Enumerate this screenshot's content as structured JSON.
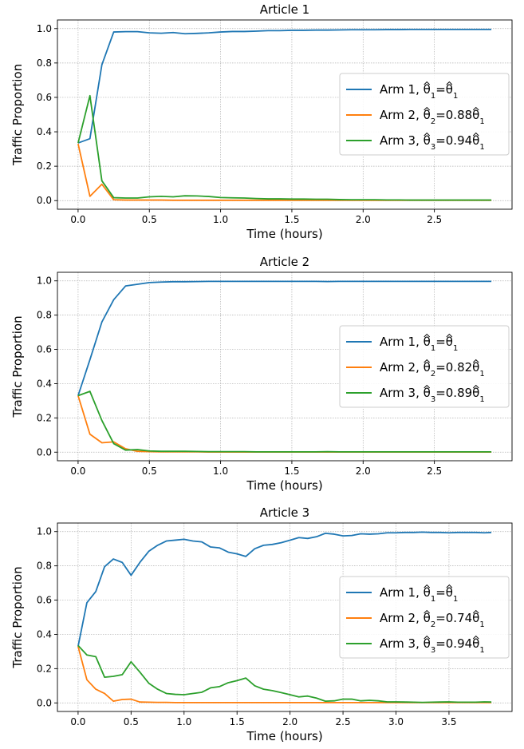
{
  "colors": {
    "arm1": "#1f77b4",
    "arm2": "#ff7f0e",
    "arm3": "#2ca02c",
    "grid": "#b0b0b0",
    "axes": "#000000"
  },
  "chart_data": [
    {
      "type": "line",
      "title": "Article 1",
      "xlabel": "Time (hours)",
      "ylabel": "Traffic Proportion",
      "xlim": [
        -0.145,
        3.045
      ],
      "ylim": [
        -0.05,
        1.05
      ],
      "xticks": [
        0.0,
        0.5,
        1.0,
        1.5,
        2.0,
        2.5
      ],
      "xtick_labels": [
        "0.0",
        "0.5",
        "1.0",
        "1.5",
        "2.0",
        "2.5"
      ],
      "yticks": [
        0.0,
        0.2,
        0.4,
        0.6,
        0.8,
        1.0
      ],
      "ytick_labels": [
        "0.0",
        "0.2",
        "0.4",
        "0.6",
        "0.8",
        "1.0"
      ],
      "grid": true,
      "legend_position": "center-right",
      "x": [
        0.0,
        0.083,
        0.167,
        0.25,
        0.333,
        0.417,
        0.5,
        0.583,
        0.667,
        0.75,
        0.833,
        0.917,
        1.0,
        1.083,
        1.167,
        1.25,
        1.333,
        1.417,
        1.5,
        1.583,
        1.667,
        1.75,
        1.833,
        1.917,
        2.0,
        2.083,
        2.167,
        2.25,
        2.333,
        2.417,
        2.5,
        2.583,
        2.667,
        2.75,
        2.833,
        2.9
      ],
      "series": [
        {
          "name": "Arm 1",
          "label_suffix": "=",
          "label_coef": "",
          "color_key": "arm1",
          "values": [
            0.335,
            0.36,
            0.79,
            0.98,
            0.982,
            0.982,
            0.975,
            0.973,
            0.977,
            0.97,
            0.972,
            0.975,
            0.98,
            0.983,
            0.983,
            0.985,
            0.988,
            0.988,
            0.99,
            0.99,
            0.991,
            0.991,
            0.992,
            0.993,
            0.993,
            0.993,
            0.994,
            0.994,
            0.995,
            0.995,
            0.995,
            0.995,
            0.995,
            0.995,
            0.995,
            0.995
          ]
        },
        {
          "name": "Arm 2",
          "label_suffix": "=",
          "label_coef": "0.88",
          "color_key": "arm2",
          "values": [
            0.33,
            0.025,
            0.095,
            0.005,
            0.003,
            0.003,
            0.003,
            0.003,
            0.002,
            0.002,
            0.002,
            0.002,
            0.002,
            0.002,
            0.002,
            0.002,
            0.002,
            0.002,
            0.002,
            0.002,
            0.002,
            0.002,
            0.002,
            0.002,
            0.002,
            0.002,
            0.002,
            0.002,
            0.002,
            0.002,
            0.002,
            0.002,
            0.002,
            0.002,
            0.002,
            0.002
          ]
        },
        {
          "name": "Arm 3",
          "label_suffix": "=",
          "label_coef": "0.94",
          "color_key": "arm3",
          "values": [
            0.335,
            0.61,
            0.115,
            0.017,
            0.015,
            0.015,
            0.022,
            0.025,
            0.022,
            0.028,
            0.027,
            0.024,
            0.018,
            0.016,
            0.015,
            0.012,
            0.01,
            0.01,
            0.009,
            0.009,
            0.008,
            0.008,
            0.006,
            0.005,
            0.005,
            0.005,
            0.004,
            0.004,
            0.003,
            0.003,
            0.003,
            0.003,
            0.003,
            0.003,
            0.003,
            0.003
          ]
        }
      ]
    },
    {
      "type": "line",
      "title": "Article 2",
      "xlabel": "Time (hours)",
      "ylabel": "Traffic Proportion",
      "xlim": [
        -0.145,
        3.045
      ],
      "ylim": [
        -0.05,
        1.05
      ],
      "xticks": [
        0.0,
        0.5,
        1.0,
        1.5,
        2.0,
        2.5
      ],
      "xtick_labels": [
        "0.0",
        "0.5",
        "1.0",
        "1.5",
        "2.0",
        "2.5"
      ],
      "yticks": [
        0.0,
        0.2,
        0.4,
        0.6,
        0.8,
        1.0
      ],
      "ytick_labels": [
        "0.0",
        "0.2",
        "0.4",
        "0.6",
        "0.8",
        "1.0"
      ],
      "grid": true,
      "legend_position": "center-right",
      "x": [
        0.0,
        0.083,
        0.167,
        0.25,
        0.333,
        0.417,
        0.5,
        0.583,
        0.667,
        0.75,
        0.833,
        0.917,
        1.0,
        1.083,
        1.167,
        1.25,
        1.333,
        1.417,
        1.5,
        1.583,
        1.667,
        1.75,
        1.833,
        1.917,
        2.0,
        2.083,
        2.167,
        2.25,
        2.333,
        2.417,
        2.5,
        2.583,
        2.667,
        2.75,
        2.833,
        2.9
      ],
      "series": [
        {
          "name": "Arm 1",
          "label_suffix": "=",
          "label_coef": "",
          "color_key": "arm1",
          "values": [
            0.33,
            0.54,
            0.76,
            0.89,
            0.97,
            0.98,
            0.99,
            0.993,
            0.995,
            0.995,
            0.996,
            0.997,
            0.997,
            0.997,
            0.997,
            0.997,
            0.997,
            0.997,
            0.997,
            0.997,
            0.997,
            0.996,
            0.997,
            0.997,
            0.997,
            0.997,
            0.997,
            0.997,
            0.997,
            0.997,
            0.997,
            0.997,
            0.997,
            0.997,
            0.997,
            0.997
          ]
        },
        {
          "name": "Arm 2",
          "label_suffix": "=",
          "label_coef": "0.82",
          "color_key": "arm2",
          "values": [
            0.33,
            0.105,
            0.055,
            0.06,
            0.02,
            0.005,
            0.003,
            0.002,
            0.002,
            0.002,
            0.002,
            0.001,
            0.001,
            0.001,
            0.001,
            0.001,
            0.001,
            0.001,
            0.001,
            0.001,
            0.001,
            0.001,
            0.001,
            0.001,
            0.001,
            0.001,
            0.001,
            0.001,
            0.001,
            0.001,
            0.001,
            0.001,
            0.001,
            0.001,
            0.001,
            0.001
          ]
        },
        {
          "name": "Arm 3",
          "label_suffix": "=",
          "label_coef": "0.89",
          "color_key": "arm3",
          "values": [
            0.33,
            0.355,
            0.185,
            0.05,
            0.012,
            0.015,
            0.007,
            0.005,
            0.005,
            0.005,
            0.004,
            0.003,
            0.003,
            0.003,
            0.003,
            0.002,
            0.002,
            0.002,
            0.002,
            0.002,
            0.002,
            0.003,
            0.002,
            0.002,
            0.002,
            0.002,
            0.002,
            0.002,
            0.002,
            0.002,
            0.002,
            0.002,
            0.002,
            0.002,
            0.002,
            0.002
          ]
        }
      ]
    },
    {
      "type": "line",
      "title": "Article 3",
      "xlabel": "Time (hours)",
      "ylabel": "Traffic Proportion",
      "xlim": [
        -0.195,
        4.095
      ],
      "ylim": [
        -0.05,
        1.05
      ],
      "xticks": [
        0.0,
        0.5,
        1.0,
        1.5,
        2.0,
        2.5,
        3.0,
        3.5
      ],
      "xtick_labels": [
        "0.0",
        "0.5",
        "1.0",
        "1.5",
        "2.0",
        "2.5",
        "3.0",
        "3.5"
      ],
      "yticks": [
        0.0,
        0.2,
        0.4,
        0.6,
        0.8,
        1.0
      ],
      "ytick_labels": [
        "0.0",
        "0.2",
        "0.4",
        "0.6",
        "0.8",
        "1.0"
      ],
      "grid": true,
      "legend_position": "center-right",
      "x": [
        0.0,
        0.083,
        0.167,
        0.25,
        0.333,
        0.417,
        0.5,
        0.583,
        0.667,
        0.75,
        0.833,
        0.917,
        1.0,
        1.083,
        1.167,
        1.25,
        1.333,
        1.417,
        1.5,
        1.583,
        1.667,
        1.75,
        1.833,
        1.917,
        2.0,
        2.083,
        2.167,
        2.25,
        2.333,
        2.417,
        2.5,
        2.583,
        2.667,
        2.75,
        2.833,
        2.917,
        3.0,
        3.083,
        3.167,
        3.25,
        3.333,
        3.417,
        3.5,
        3.583,
        3.667,
        3.75,
        3.833,
        3.9
      ],
      "series": [
        {
          "name": "Arm 1",
          "label_suffix": "=",
          "label_coef": "",
          "color_key": "arm1",
          "values": [
            0.33,
            0.585,
            0.65,
            0.795,
            0.84,
            0.82,
            0.745,
            0.82,
            0.885,
            0.92,
            0.945,
            0.95,
            0.955,
            0.945,
            0.94,
            0.91,
            0.905,
            0.88,
            0.87,
            0.855,
            0.9,
            0.92,
            0.925,
            0.935,
            0.95,
            0.965,
            0.96,
            0.97,
            0.99,
            0.985,
            0.975,
            0.977,
            0.987,
            0.985,
            0.987,
            0.993,
            0.993,
            0.995,
            0.995,
            0.997,
            0.995,
            0.995,
            0.993,
            0.995,
            0.995,
            0.995,
            0.993,
            0.995
          ]
        },
        {
          "name": "Arm 2",
          "label_suffix": "=",
          "label_coef": "0.74",
          "color_key": "arm2",
          "values": [
            0.33,
            0.135,
            0.08,
            0.055,
            0.01,
            0.02,
            0.022,
            0.005,
            0.004,
            0.003,
            0.003,
            0.002,
            0.002,
            0.002,
            0.002,
            0.002,
            0.002,
            0.002,
            0.002,
            0.002,
            0.002,
            0.002,
            0.002,
            0.002,
            0.002,
            0.002,
            0.002,
            0.002,
            0.002,
            0.002,
            0.002,
            0.002,
            0.002,
            0.002,
            0.002,
            0.002,
            0.002,
            0.002,
            0.002,
            0.002,
            0.002,
            0.002,
            0.002,
            0.002,
            0.002,
            0.002,
            0.002,
            0.002
          ]
        },
        {
          "name": "Arm 3",
          "label_suffix": "=",
          "label_coef": "0.94",
          "color_key": "arm3",
          "values": [
            0.335,
            0.28,
            0.27,
            0.15,
            0.155,
            0.165,
            0.24,
            0.18,
            0.115,
            0.08,
            0.055,
            0.05,
            0.048,
            0.055,
            0.062,
            0.088,
            0.095,
            0.118,
            0.13,
            0.145,
            0.1,
            0.08,
            0.072,
            0.06,
            0.048,
            0.035,
            0.04,
            0.028,
            0.01,
            0.012,
            0.022,
            0.022,
            0.012,
            0.015,
            0.012,
            0.006,
            0.006,
            0.005,
            0.004,
            0.003,
            0.004,
            0.005,
            0.006,
            0.004,
            0.004,
            0.004,
            0.006,
            0.005
          ]
        }
      ]
    }
  ]
}
